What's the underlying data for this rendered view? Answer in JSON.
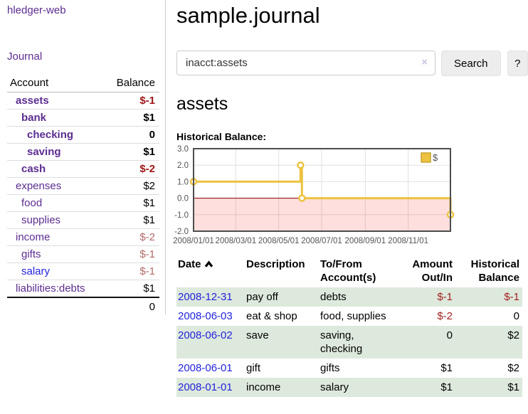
{
  "app": {
    "title": "hledger-web"
  },
  "nav": {
    "journal": "Journal"
  },
  "sidebar": {
    "headers": {
      "account": "Account",
      "balance": "Balance"
    },
    "accounts": [
      {
        "name": "assets",
        "balance": "$-1",
        "indent": 0,
        "bold": true,
        "balance_style": "neg-strong"
      },
      {
        "name": "bank",
        "balance": "$1",
        "indent": 1,
        "bold": true,
        "balance_style": "pos"
      },
      {
        "name": "checking",
        "balance": "0",
        "indent": 2,
        "bold": true,
        "balance_style": "pos"
      },
      {
        "name": "saving",
        "balance": "$1",
        "indent": 2,
        "bold": true,
        "balance_style": "pos"
      },
      {
        "name": "cash",
        "balance": "$-2",
        "indent": 1,
        "bold": true,
        "balance_style": "neg-strong"
      },
      {
        "name": "expenses",
        "balance": "$2",
        "indent": 0,
        "bold": false,
        "balance_style": "pos"
      },
      {
        "name": "food",
        "balance": "$1",
        "indent": 1,
        "bold": false,
        "balance_style": "pos"
      },
      {
        "name": "supplies",
        "balance": "$1",
        "indent": 1,
        "bold": false,
        "balance_style": "pos"
      },
      {
        "name": "income",
        "balance": "$-2",
        "indent": 0,
        "bold": false,
        "balance_style": "neg-muted"
      },
      {
        "name": "gifts",
        "balance": "$-1",
        "indent": 1,
        "bold": false,
        "balance_style": "neg-muted"
      },
      {
        "name": "salary",
        "balance": "$-1",
        "indent": 1,
        "bold": false,
        "balance_style": "neg-muted",
        "link_color": "blue"
      },
      {
        "name": "liabilities:debts",
        "balance": "$1",
        "indent": 0,
        "bold": false,
        "balance_style": "pos"
      }
    ],
    "total": "0"
  },
  "header": {
    "title": "sample.journal"
  },
  "search": {
    "value": "inacct:assets",
    "clear_icon": "×",
    "button": "Search",
    "help_button": "?"
  },
  "account_page": {
    "heading": "assets",
    "chart_label": "Historical Balance:"
  },
  "chart_data": {
    "type": "line",
    "line_style": "step",
    "title": "Historical Balance",
    "x_range": [
      "2008-01-01",
      "2008-12-31"
    ],
    "y_range": [
      -2,
      3
    ],
    "y_ticks": [
      "3.0",
      "2.0",
      "1.0",
      "0.0",
      "-1.0",
      "-2.0"
    ],
    "x_ticks": [
      "2008/01/01",
      "2008/03/01",
      "2008/05/01",
      "2008/07/01",
      "2008/09/01",
      "2008/11/01"
    ],
    "series": [
      {
        "name": "$",
        "color": "#edc240",
        "points": [
          {
            "x": "2008-01-01",
            "y": 1
          },
          {
            "x": "2008-06-01",
            "y": 2
          },
          {
            "x": "2008-06-03",
            "y": 0
          },
          {
            "x": "2008-12-31",
            "y": -1
          }
        ]
      }
    ],
    "legend": "$",
    "legend_position": "top-right",
    "grid": true,
    "zero_line_color": "#8b0000",
    "negative_region_fill": "rgba(255,0,0,0.13)"
  },
  "register": {
    "sort": {
      "column": "Date",
      "direction": "ascending"
    },
    "columns": [
      {
        "key": "date",
        "label": "Date",
        "align": "left"
      },
      {
        "key": "description",
        "label": "Description",
        "align": "left"
      },
      {
        "key": "accounts",
        "label": "To/From Account(s)",
        "align": "left"
      },
      {
        "key": "amount",
        "label": "Amount Out/In",
        "align": "right"
      },
      {
        "key": "balance",
        "label": "Historical Balance",
        "align": "right"
      }
    ],
    "rows": [
      {
        "date": "2008-12-31",
        "description": "pay off",
        "accounts": "debts",
        "amount": "$-1",
        "amount_neg": true,
        "balance": "$-1",
        "balance_neg": true
      },
      {
        "date": "2008-06-03",
        "description": "eat & shop",
        "accounts": "food, supplies",
        "amount": "$-2",
        "amount_neg": true,
        "balance": "0",
        "balance_neg": false
      },
      {
        "date": "2008-06-02",
        "description": "save",
        "accounts": "saving, checking",
        "amount": "0",
        "amount_neg": false,
        "balance": "$2",
        "balance_neg": false
      },
      {
        "date": "2008-06-01",
        "description": "gift",
        "accounts": "gifts",
        "amount": "$1",
        "amount_neg": false,
        "balance": "$2",
        "balance_neg": false
      },
      {
        "date": "2008-01-01",
        "description": "income",
        "accounts": "salary",
        "amount": "$1",
        "amount_neg": false,
        "balance": "$1",
        "balance_neg": false
      }
    ]
  },
  "colors": {
    "link_purple": "#5c2d91",
    "link_blue": "#2323dd",
    "negative_strong": "#9e1616",
    "negative_muted": "#b36a6a",
    "negative_table": "#a22222",
    "row_stripe_green": "#dde9dc",
    "chart_series_yellow": "#edc240",
    "chart_border": "#4d4d4d",
    "chart_gridline": "#e0e0e0",
    "chart_tick_text": "#545454",
    "button_bg": "#ededed"
  }
}
